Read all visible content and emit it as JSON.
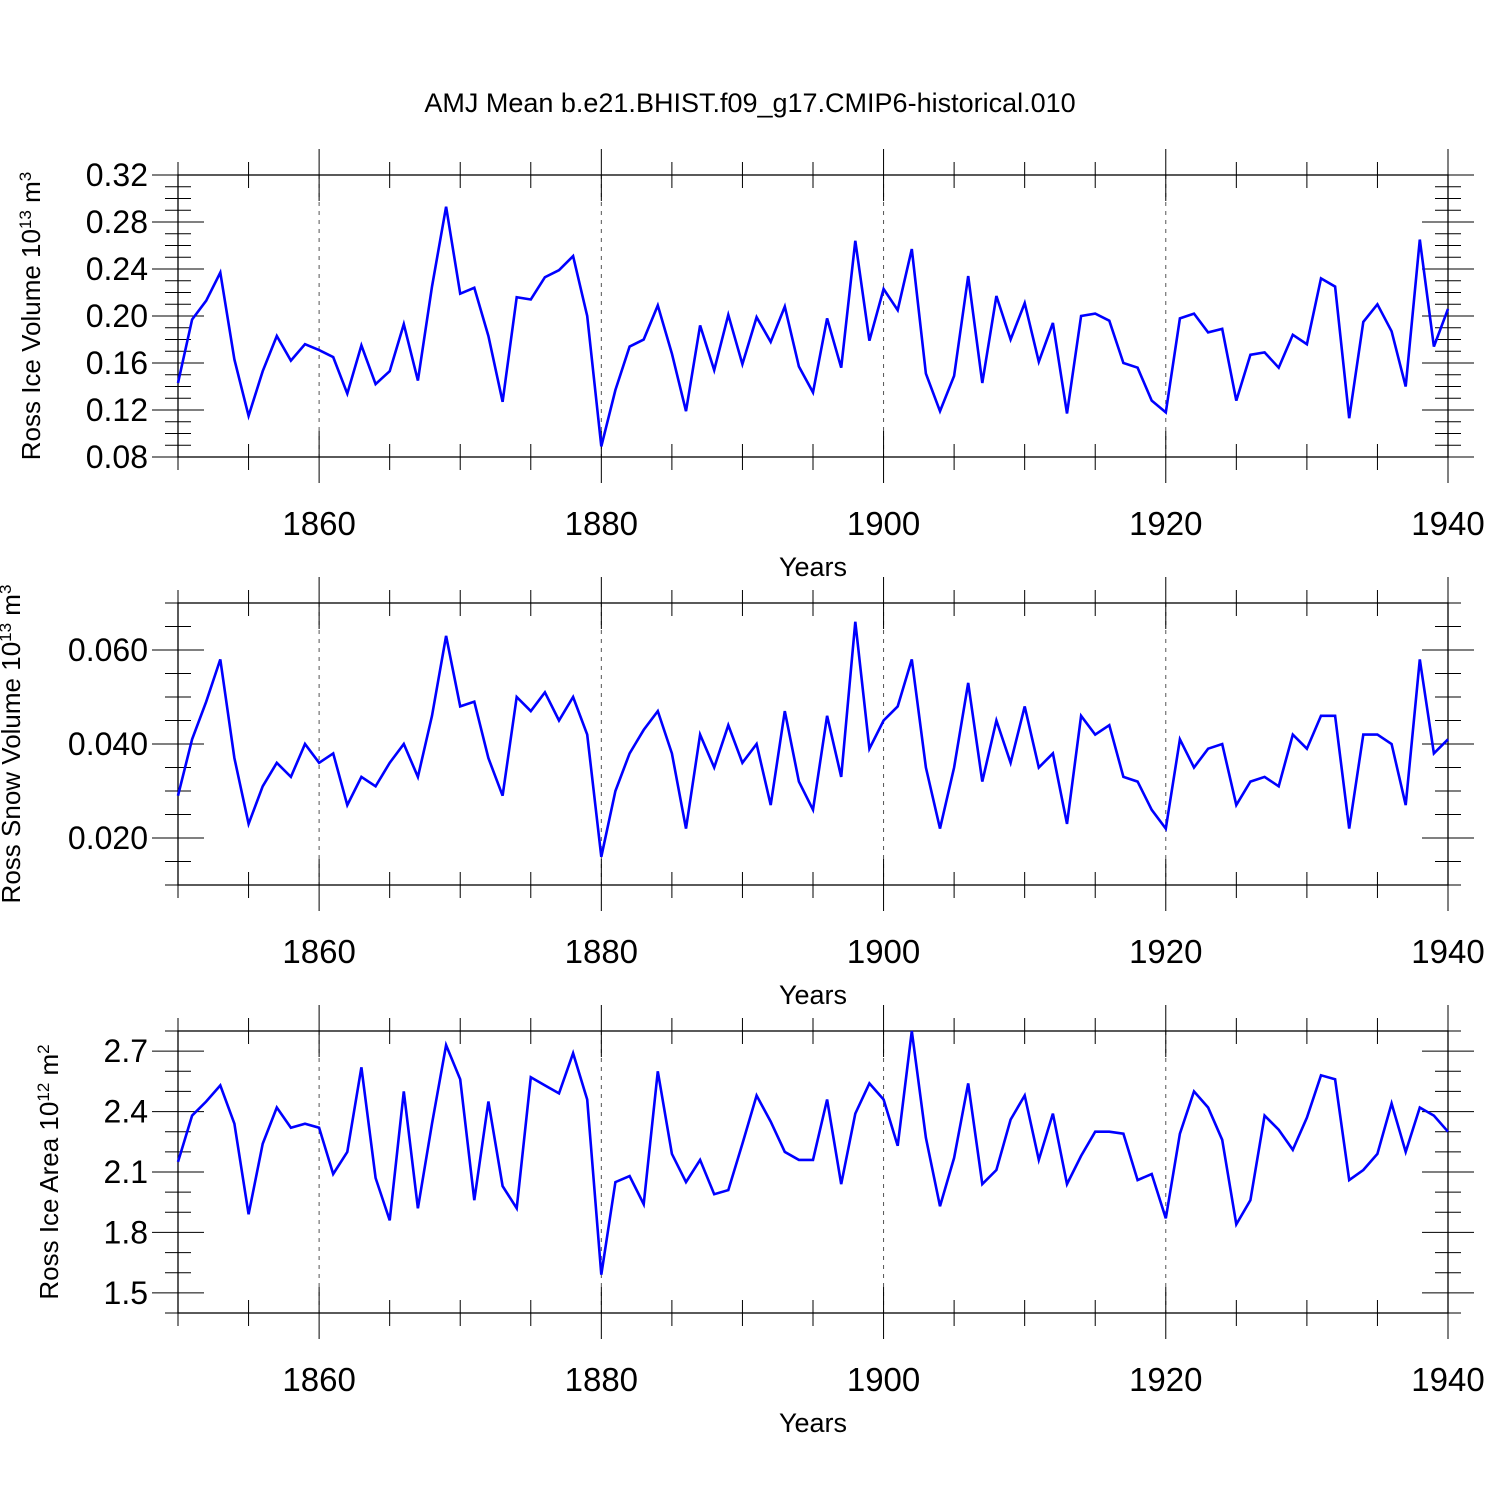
{
  "title": "AMJ Mean b.e21.BHIST.f09_g17.CMIP6-historical.010",
  "line_color": "#0000ff",
  "chart_data": [
    {
      "type": "line",
      "ylabel_main": "Ross Ice Volume 10",
      "ylabel_exp": "13",
      "ylabel_unit": " m",
      "ylabel_unit_exp": "3",
      "xlabel": "Years",
      "xlim": [
        1850,
        1940
      ],
      "ylim": [
        0.08,
        0.32
      ],
      "yticks": [
        0.08,
        0.12,
        0.16,
        0.2,
        0.24,
        0.28,
        0.32
      ],
      "ytick_labels": [
        "0.08",
        "0.12",
        "0.16",
        "0.20",
        "0.24",
        "0.28",
        "0.32"
      ],
      "yminor": [
        0.09,
        0.1,
        0.11,
        0.13,
        0.14,
        0.15,
        0.17,
        0.18,
        0.19,
        0.21,
        0.22,
        0.23,
        0.25,
        0.26,
        0.27,
        0.29,
        0.3,
        0.31
      ],
      "xticks": [
        1860,
        1880,
        1900,
        1920,
        1940
      ],
      "xtick_labels": [
        "1860",
        "1880",
        "1900",
        "1920",
        "1940"
      ],
      "x_start": 1850,
      "values": [
        0.143,
        0.197,
        0.213,
        0.237,
        0.163,
        0.115,
        0.153,
        0.183,
        0.162,
        0.176,
        0.171,
        0.165,
        0.134,
        0.175,
        0.142,
        0.153,
        0.193,
        0.145,
        0.225,
        0.293,
        0.219,
        0.224,
        0.183,
        0.127,
        0.216,
        0.214,
        0.233,
        0.239,
        0.251,
        0.2,
        0.089,
        0.137,
        0.174,
        0.18,
        0.209,
        0.168,
        0.119,
        0.192,
        0.154,
        0.201,
        0.159,
        0.199,
        0.178,
        0.208,
        0.157,
        0.135,
        0.198,
        0.156,
        0.264,
        0.179,
        0.223,
        0.205,
        0.257,
        0.151,
        0.119,
        0.149,
        0.234,
        0.143,
        0.217,
        0.18,
        0.211,
        0.161,
        0.194,
        0.117,
        0.2,
        0.202,
        0.196,
        0.16,
        0.156,
        0.128,
        0.118,
        0.198,
        0.202,
        0.186,
        0.189,
        0.128,
        0.167,
        0.169,
        0.156,
        0.184,
        0.176,
        0.232,
        0.225,
        0.113,
        0.195,
        0.21,
        0.187,
        0.14,
        0.265,
        0.174,
        0.206
      ]
    },
    {
      "type": "line",
      "ylabel_main": "Ross Snow Volume 10",
      "ylabel_exp": "13",
      "ylabel_unit": " m",
      "ylabel_unit_exp": "3",
      "xlabel": "Years",
      "xlim": [
        1850,
        1940
      ],
      "ylim": [
        0.01,
        0.07
      ],
      "yticks": [
        0.02,
        0.04,
        0.06
      ],
      "ytick_labels": [
        "0.020",
        "0.040",
        "0.060"
      ],
      "yminor": [
        0.01,
        0.015,
        0.025,
        0.03,
        0.035,
        0.045,
        0.05,
        0.055,
        0.065,
        0.07
      ],
      "xticks": [
        1860,
        1880,
        1900,
        1920,
        1940
      ],
      "xtick_labels": [
        "1860",
        "1880",
        "1900",
        "1920",
        "1940"
      ],
      "x_start": 1850,
      "values": [
        0.029,
        0.041,
        0.049,
        0.058,
        0.037,
        0.023,
        0.031,
        0.036,
        0.033,
        0.04,
        0.036,
        0.038,
        0.027,
        0.033,
        0.031,
        0.036,
        0.04,
        0.033,
        0.046,
        0.063,
        0.048,
        0.049,
        0.037,
        0.029,
        0.05,
        0.047,
        0.051,
        0.045,
        0.05,
        0.042,
        0.016,
        0.03,
        0.038,
        0.043,
        0.047,
        0.038,
        0.022,
        0.042,
        0.035,
        0.044,
        0.036,
        0.04,
        0.027,
        0.047,
        0.032,
        0.026,
        0.046,
        0.033,
        0.066,
        0.039,
        0.045,
        0.048,
        0.058,
        0.035,
        0.022,
        0.035,
        0.053,
        0.032,
        0.045,
        0.036,
        0.048,
        0.035,
        0.038,
        0.023,
        0.046,
        0.042,
        0.044,
        0.033,
        0.032,
        0.026,
        0.022,
        0.041,
        0.035,
        0.039,
        0.04,
        0.027,
        0.032,
        0.033,
        0.031,
        0.042,
        0.039,
        0.046,
        0.046,
        0.022,
        0.042,
        0.042,
        0.04,
        0.027,
        0.058,
        0.038,
        0.041
      ]
    },
    {
      "type": "line",
      "ylabel_main": "Ross Ice Area 10",
      "ylabel_exp": "12",
      "ylabel_unit": " m",
      "ylabel_unit_exp": "2",
      "xlabel": "Years",
      "xlim": [
        1850,
        1940
      ],
      "ylim": [
        1.4,
        2.8
      ],
      "yticks": [
        1.5,
        1.8,
        2.1,
        2.4,
        2.7
      ],
      "ytick_labels": [
        "1.5",
        "1.8",
        "2.1",
        "2.4",
        "2.7"
      ],
      "yminor": [
        1.4,
        1.6,
        1.7,
        1.9,
        2.0,
        2.2,
        2.3,
        2.5,
        2.6,
        2.8
      ],
      "xticks": [
        1860,
        1880,
        1900,
        1920,
        1940
      ],
      "xtick_labels": [
        "1860",
        "1880",
        "1900",
        "1920",
        "1940"
      ],
      "x_start": 1850,
      "values": [
        2.15,
        2.38,
        2.45,
        2.53,
        2.34,
        1.89,
        2.24,
        2.42,
        2.32,
        2.34,
        2.32,
        2.09,
        2.2,
        2.62,
        2.07,
        1.86,
        2.5,
        1.92,
        2.34,
        2.73,
        2.56,
        1.96,
        2.45,
        2.03,
        1.92,
        2.57,
        2.53,
        2.49,
        2.69,
        2.46,
        1.59,
        2.05,
        2.08,
        1.94,
        2.6,
        2.19,
        2.05,
        2.16,
        1.99,
        2.01,
        2.24,
        2.48,
        2.35,
        2.2,
        2.16,
        2.16,
        2.46,
        2.04,
        2.39,
        2.54,
        2.46,
        2.23,
        2.8,
        2.27,
        1.93,
        2.17,
        2.54,
        2.04,
        2.11,
        2.36,
        2.48,
        2.16,
        2.39,
        2.04,
        2.18,
        2.3,
        2.3,
        2.29,
        2.06,
        2.09,
        1.87,
        2.29,
        2.5,
        2.42,
        2.26,
        1.84,
        1.96,
        2.38,
        2.31,
        2.21,
        2.37,
        2.58,
        2.56,
        2.06,
        2.11,
        2.19,
        2.44,
        2.2,
        2.42,
        2.38,
        2.3
      ]
    }
  ]
}
